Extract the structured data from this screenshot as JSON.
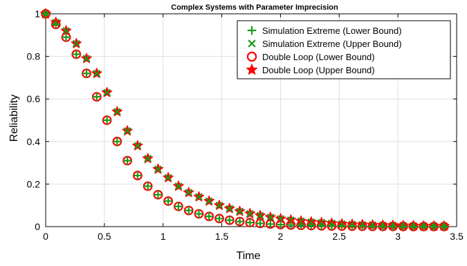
{
  "chart_data": {
    "type": "scatter",
    "title": "Complex Systems with Parameter Imprecision",
    "xlabel": "Time",
    "ylabel": "Reliability",
    "xlim": [
      0,
      3.5
    ],
    "ylim": [
      0,
      1
    ],
    "xticks": [
      "0",
      "0.5",
      "1",
      "1.5",
      "2",
      "2.5",
      "3",
      "3.5"
    ],
    "yticks": [
      "0",
      "0.2",
      "0.4",
      "0.6",
      "0.8",
      "1"
    ],
    "grid": true,
    "legend_position": "top-right",
    "x": [
      0,
      0.087,
      0.174,
      0.261,
      0.348,
      0.435,
      0.522,
      0.609,
      0.696,
      0.783,
      0.87,
      0.957,
      1.044,
      1.131,
      1.218,
      1.305,
      1.392,
      1.479,
      1.566,
      1.653,
      1.74,
      1.827,
      1.914,
      2.001,
      2.088,
      2.175,
      2.262,
      2.349,
      2.436,
      2.523,
      2.61,
      2.697,
      2.784,
      2.871,
      2.958,
      3.045,
      3.132,
      3.219,
      3.306,
      3.393
    ],
    "series": [
      {
        "name": "Simulation Extreme (Lower Bound)",
        "marker": "plus",
        "color": "#1a9a1a",
        "values": [
          1.0,
          0.95,
          0.89,
          0.81,
          0.72,
          0.61,
          0.5,
          0.4,
          0.31,
          0.24,
          0.19,
          0.15,
          0.12,
          0.095,
          0.076,
          0.06,
          0.048,
          0.038,
          0.03,
          0.024,
          0.019,
          0.015,
          0.012,
          0.0095,
          0.0075,
          0.006,
          0.0047,
          0.0037,
          0.003,
          0.0024,
          0.0019,
          0.0015,
          0.0012,
          0.00094,
          0.00075,
          0.0006,
          0.00047,
          0.00037,
          0.0003,
          0.00023
        ]
      },
      {
        "name": "Simulation Extreme (Upper Bound)",
        "marker": "x",
        "color": "#1a9a1a",
        "values": [
          1.0,
          0.96,
          0.92,
          0.86,
          0.79,
          0.72,
          0.63,
          0.54,
          0.45,
          0.38,
          0.32,
          0.27,
          0.23,
          0.19,
          0.16,
          0.14,
          0.12,
          0.1,
          0.085,
          0.072,
          0.061,
          0.052,
          0.044,
          0.037,
          0.031,
          0.026,
          0.022,
          0.019,
          0.016,
          0.013,
          0.011,
          0.0095,
          0.008,
          0.0068,
          0.0057,
          0.0048,
          0.0041,
          0.0035,
          0.0029,
          0.0025
        ]
      },
      {
        "name": "Double Loop (Lower Bound)",
        "marker": "circle",
        "color": "#ff0000",
        "values": [
          1.0,
          0.95,
          0.89,
          0.81,
          0.72,
          0.61,
          0.5,
          0.4,
          0.31,
          0.24,
          0.19,
          0.15,
          0.12,
          0.095,
          0.076,
          0.06,
          0.048,
          0.038,
          0.03,
          0.024,
          0.019,
          0.015,
          0.012,
          0.0095,
          0.0075,
          0.006,
          0.0047,
          0.0037,
          0.003,
          0.0024,
          0.0019,
          0.0015,
          0.0012,
          0.00094,
          0.00075,
          0.0006,
          0.00047,
          0.00037,
          0.0003,
          0.00023
        ]
      },
      {
        "name": "Double Loop (Upper Bound)",
        "marker": "star",
        "color": "#ff0000",
        "values": [
          1.0,
          0.96,
          0.92,
          0.86,
          0.79,
          0.72,
          0.63,
          0.54,
          0.45,
          0.38,
          0.32,
          0.27,
          0.23,
          0.19,
          0.16,
          0.14,
          0.12,
          0.1,
          0.085,
          0.072,
          0.061,
          0.052,
          0.044,
          0.037,
          0.031,
          0.026,
          0.022,
          0.019,
          0.016,
          0.013,
          0.011,
          0.0095,
          0.008,
          0.0068,
          0.0057,
          0.0048,
          0.0041,
          0.0035,
          0.0029,
          0.0025
        ]
      }
    ]
  }
}
